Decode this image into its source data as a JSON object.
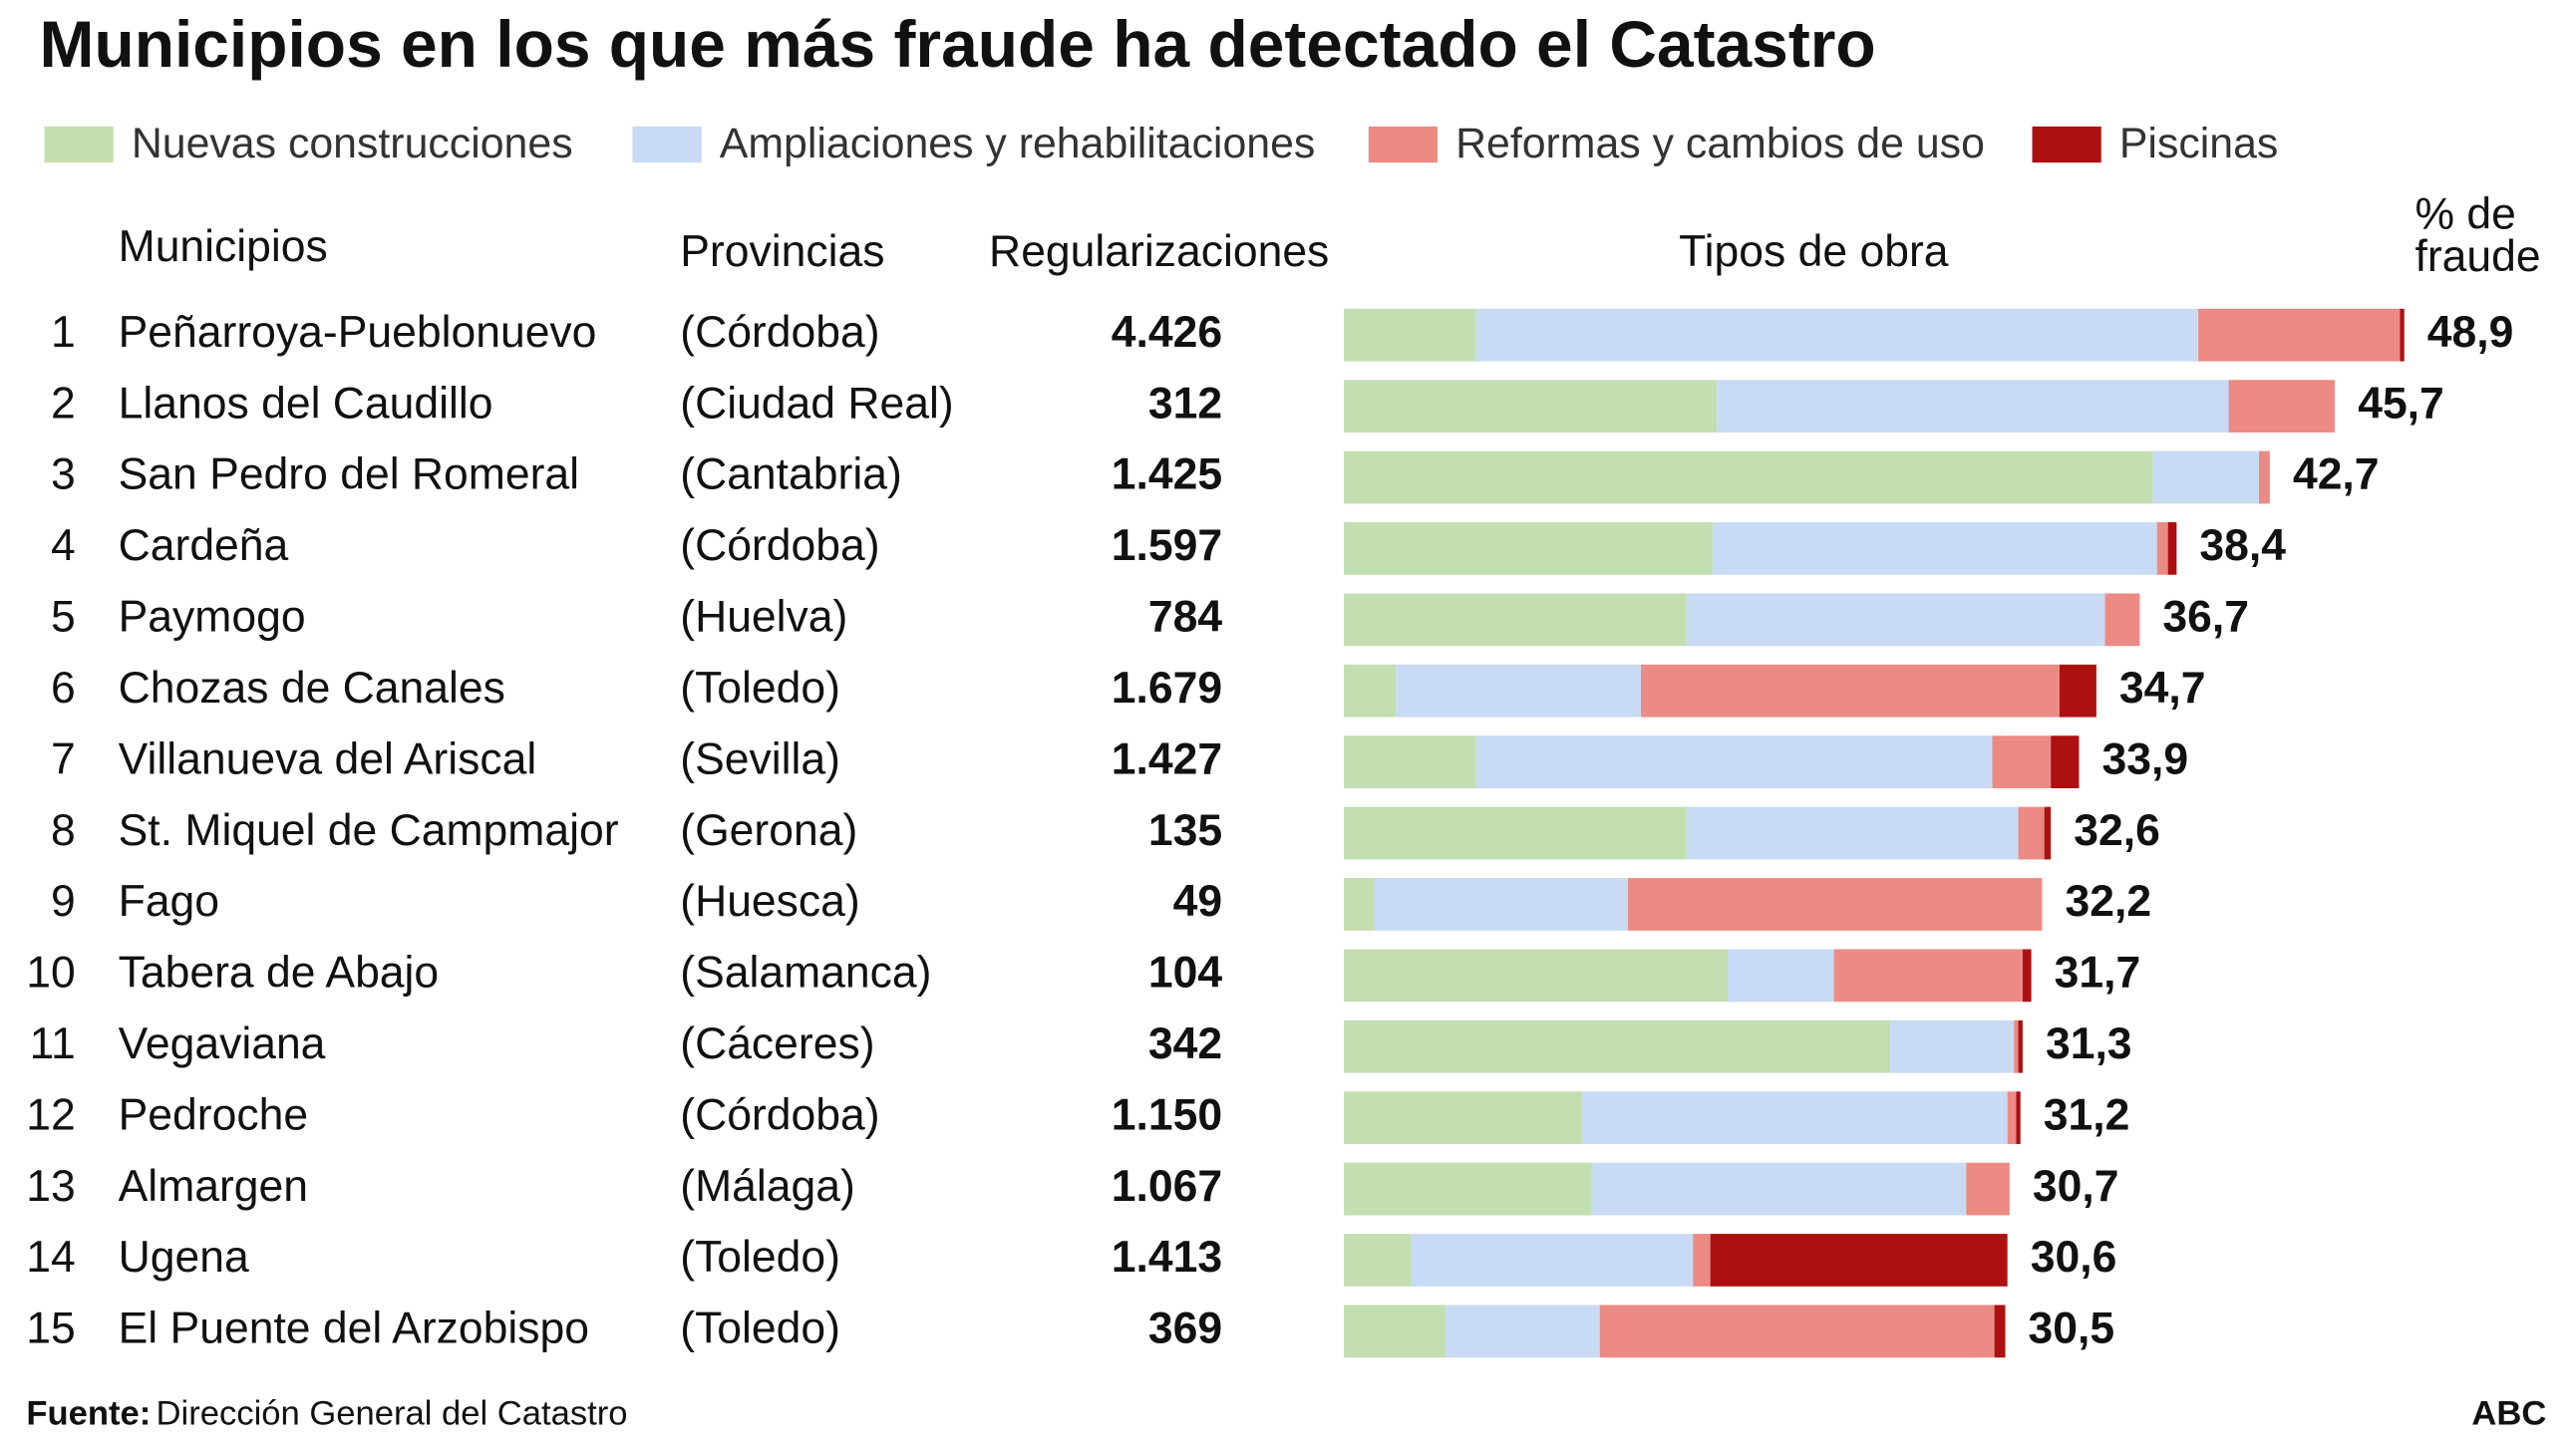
{
  "chart_data": {
    "type": "bar",
    "orientation": "horizontal",
    "stacked": true,
    "title": "Municipios en los que más fraude ha detectado el Catastro",
    "headers": {
      "municipios": "Municipios",
      "provincias": "Provincias",
      "regularizaciones": "Regularizaciones",
      "tipos": "Tipos de obra",
      "fraude": [
        "% de",
        "fraude"
      ]
    },
    "ranks": [
      "1",
      "2",
      "3",
      "4",
      "5",
      "6",
      "7",
      "8",
      "9",
      "10",
      "11",
      "12",
      "13",
      "14",
      "15"
    ],
    "categories": [
      "Peñarroya-Pueblonuevo",
      "Llanos del Caudillo",
      "San Pedro del Romeral",
      "Cardeña",
      "Paymogo",
      "Chozas de Canales",
      "Villanueva del Ariscal",
      "St. Miquel de Campmajor",
      "Fago",
      "Tabera de Abajo",
      "Vegaviana",
      "Pedroche",
      "Almargen",
      "Ugena",
      "El Puente del Arzobispo"
    ],
    "provinces": [
      "(Córdoba)",
      "(Ciudad Real)",
      "(Cantabria)",
      "(Córdoba)",
      "(Huelva)",
      "(Toledo)",
      "(Sevilla)",
      "(Gerona)",
      "(Huesca)",
      "(Salamanca)",
      "(Cáceres)",
      "(Córdoba)",
      "(Málaga)",
      "(Toledo)",
      "(Toledo)"
    ],
    "regularizaciones": [
      "4.426",
      "312",
      "1.425",
      "1.597",
      "784",
      "1.679",
      "1.427",
      "135",
      "49",
      "104",
      "342",
      "1.150",
      "1.067",
      "1.413",
      "369"
    ],
    "series": [
      {
        "name": "Nuevas construcciones",
        "color": "#c3deb0",
        "values": [
          6.1,
          17.2,
          37.3,
          17.0,
          15.8,
          2.4,
          6.1,
          15.8,
          1.4,
          17.7,
          25.2,
          11.0,
          11.4,
          3.1,
          4.7
        ]
      },
      {
        "name": "Ampliaciones y rehabilitaciones",
        "color": "#c8daf4",
        "values": [
          33.3,
          23.6,
          4.9,
          20.5,
          19.3,
          11.3,
          23.8,
          15.3,
          11.7,
          4.9,
          5.7,
          19.6,
          17.3,
          13.0,
          7.1
        ]
      },
      {
        "name": "Reformas y cambios de uso",
        "color": "#ec8a84",
        "values": [
          9.3,
          4.9,
          0.5,
          0.5,
          1.6,
          19.3,
          2.7,
          1.2,
          19.1,
          8.7,
          0.2,
          0.4,
          2.0,
          0.8,
          18.2
        ]
      },
      {
        "name": "Piscinas",
        "color": "#ad1010",
        "values": [
          0.2,
          0,
          0,
          0.4,
          0,
          1.7,
          1.3,
          0.3,
          0,
          0.4,
          0.2,
          0.2,
          0,
          13.7,
          0.5
        ]
      }
    ],
    "fraud": {
      "values": [
        48.9,
        45.7,
        42.7,
        38.4,
        36.7,
        34.7,
        33.9,
        32.6,
        32.2,
        31.7,
        31.3,
        31.2,
        30.7,
        30.6,
        30.5
      ],
      "value_labels": [
        "48,9",
        "45,7",
        "42,7",
        "38,4",
        "36,7",
        "34,7",
        "33,9",
        "32,6",
        "32,2",
        "31,7",
        "31,3",
        "31,2",
        "30,7",
        "30,6",
        "30,5"
      ]
    },
    "source_label": "Fuente:",
    "source": "Dirección General del Catastro",
    "brand": "ABC"
  }
}
